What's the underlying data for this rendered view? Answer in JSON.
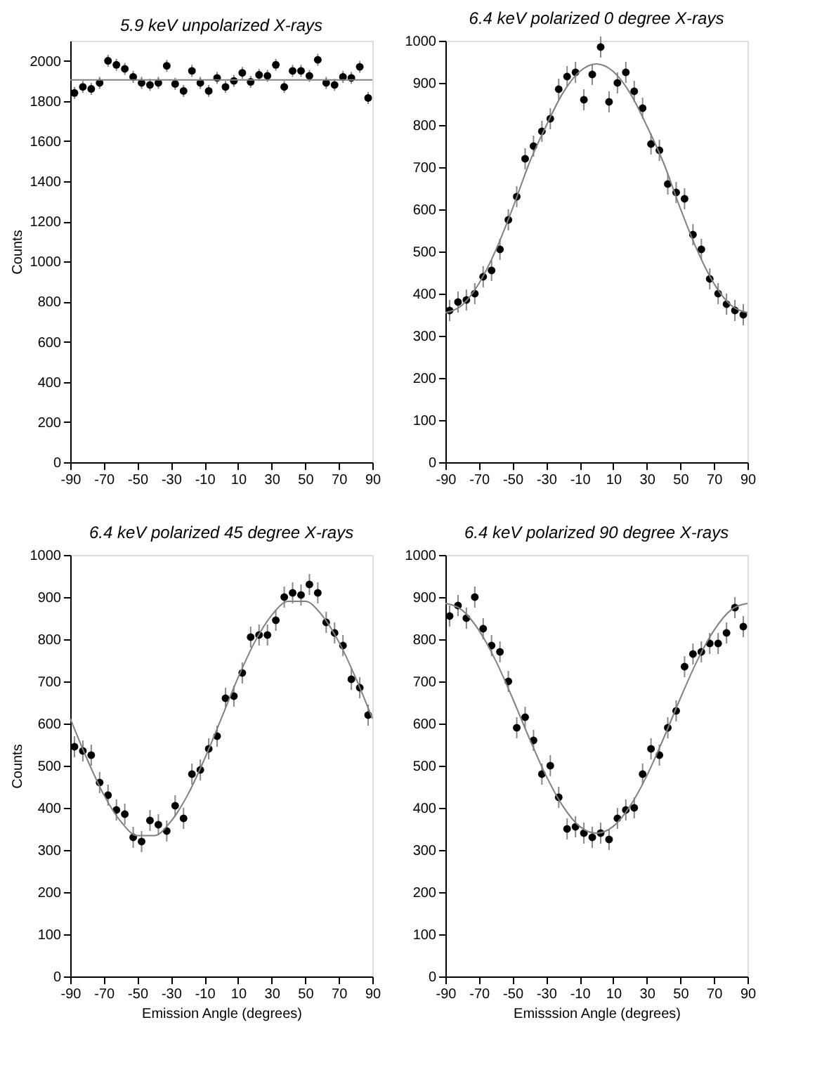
{
  "chart_data": [
    {
      "type": "scatter",
      "title": "5.9 keV unpolarized X-rays",
      "ylabel": "Counts",
      "xlim": [
        -90,
        90
      ],
      "xticks": [
        -90,
        -70,
        -50,
        -30,
        -10,
        10,
        30,
        50,
        70,
        90
      ],
      "ylim": [
        0,
        2100
      ],
      "yticks": [
        0,
        200,
        400,
        600,
        800,
        1000,
        1200,
        1400,
        1600,
        1800,
        2000
      ],
      "x": [
        -87.5,
        -82.5,
        -77.5,
        -72.5,
        -67.5,
        -62.5,
        -57.5,
        -52.5,
        -47.5,
        -42.5,
        -37.5,
        -32.5,
        -27.5,
        -22.5,
        -17.5,
        -12.5,
        -7.5,
        -2.5,
        2.5,
        7.5,
        12.5,
        17.5,
        22.5,
        27.5,
        32.5,
        37.5,
        42.5,
        47.5,
        52.5,
        57.5,
        62.5,
        67.5,
        72.5,
        77.5,
        82.5,
        87.5
      ],
      "series": [
        {
          "type": "scatter",
          "marker": "circle",
          "color": "#000000",
          "values": [
            1840,
            1870,
            1860,
            1890,
            2000,
            1980,
            1960,
            1920,
            1890,
            1880,
            1890,
            1975,
            1885,
            1850,
            1950,
            1890,
            1850,
            1915,
            1870,
            1900,
            1940,
            1895,
            1930,
            1925,
            1980,
            1870,
            1950,
            1950,
            1925,
            2005,
            1890,
            1880,
            1920,
            1915,
            1970,
            1815
          ],
          "errors": [
            30,
            30,
            30,
            30,
            30,
            30,
            30,
            30,
            30,
            30,
            30,
            30,
            30,
            30,
            30,
            30,
            30,
            30,
            30,
            30,
            30,
            30,
            30,
            30,
            30,
            30,
            30,
            30,
            30,
            30,
            30,
            30,
            30,
            30,
            30,
            30
          ]
        },
        {
          "type": "line",
          "color": "#808080",
          "x": [
            -90,
            90
          ],
          "values": [
            1905,
            1905
          ]
        }
      ]
    },
    {
      "type": "scatter",
      "title": "6.4 keV polarized 0 degree X-rays",
      "xlim": [
        -90,
        90
      ],
      "xticks": [
        -90,
        -70,
        -50,
        -30,
        -10,
        10,
        30,
        50,
        70,
        90
      ],
      "ylim": [
        0,
        1000
      ],
      "yticks": [
        0,
        100,
        200,
        300,
        400,
        500,
        600,
        700,
        800,
        900,
        1000
      ],
      "x": [
        -87.5,
        -82.5,
        -77.5,
        -72.5,
        -67.5,
        -62.5,
        -57.5,
        -52.5,
        -47.5,
        -42.5,
        -37.5,
        -32.5,
        -27.5,
        -22.5,
        -17.5,
        -12.5,
        -7.5,
        -2.5,
        2.5,
        7.5,
        12.5,
        17.5,
        22.5,
        27.5,
        32.5,
        37.5,
        42.5,
        47.5,
        52.5,
        57.5,
        62.5,
        67.5,
        72.5,
        77.5,
        82.5,
        87.5
      ],
      "series": [
        {
          "type": "scatter",
          "marker": "circle",
          "color": "#000000",
          "values": [
            360,
            380,
            385,
            400,
            440,
            455,
            505,
            575,
            630,
            720,
            750,
            785,
            815,
            885,
            915,
            925,
            860,
            920,
            985,
            855,
            900,
            925,
            880,
            840,
            755,
            740,
            660,
            640,
            625,
            540,
            505,
            435,
            400,
            375,
            360,
            350
          ],
          "errors": [
            25,
            25,
            25,
            25,
            25,
            25,
            25,
            25,
            25,
            25,
            25,
            25,
            25,
            25,
            25,
            25,
            25,
            25,
            25,
            25,
            25,
            25,
            25,
            25,
            25,
            25,
            25,
            25,
            25,
            25,
            25,
            25,
            25,
            25,
            25,
            25
          ]
        },
        {
          "type": "line",
          "color": "#808080",
          "x": [
            -90,
            -80,
            -70,
            -60,
            -50,
            -40,
            -30,
            -20,
            -10,
            0,
            10,
            20,
            30,
            40,
            50,
            60,
            70,
            80,
            90
          ],
          "values": [
            355,
            373,
            424,
            503,
            602,
            710,
            798,
            876,
            927,
            945,
            927,
            876,
            798,
            710,
            602,
            503,
            424,
            373,
            355
          ]
        }
      ]
    },
    {
      "type": "scatter",
      "title": "6.4 keV polarized 45 degree X-rays",
      "xlabel": "Emission Angle (degrees)",
      "ylabel": "Counts",
      "xlim": [
        -90,
        90
      ],
      "xticks": [
        -90,
        -70,
        -50,
        -30,
        -10,
        10,
        30,
        50,
        70,
        90
      ],
      "ylim": [
        0,
        1000
      ],
      "yticks": [
        0,
        100,
        200,
        300,
        400,
        500,
        600,
        700,
        800,
        900,
        1000
      ],
      "x": [
        -87.5,
        -82.5,
        -77.5,
        -72.5,
        -67.5,
        -62.5,
        -57.5,
        -52.5,
        -47.5,
        -42.5,
        -37.5,
        -32.5,
        -27.5,
        -22.5,
        -17.5,
        -12.5,
        -7.5,
        -2.5,
        2.5,
        7.5,
        12.5,
        17.5,
        22.5,
        27.5,
        32.5,
        37.5,
        42.5,
        47.5,
        52.5,
        57.5,
        62.5,
        67.5,
        72.5,
        77.5,
        82.5,
        87.5
      ],
      "series": [
        {
          "type": "scatter",
          "marker": "circle",
          "color": "#000000",
          "values": [
            545,
            535,
            525,
            460,
            430,
            395,
            385,
            330,
            320,
            370,
            360,
            345,
            405,
            375,
            480,
            490,
            540,
            570,
            660,
            665,
            720,
            805,
            810,
            810,
            845,
            900,
            910,
            905,
            930,
            910,
            840,
            815,
            785,
            705,
            685,
            620
          ],
          "errors": [
            25,
            25,
            25,
            25,
            25,
            25,
            25,
            25,
            25,
            25,
            25,
            25,
            25,
            25,
            25,
            25,
            25,
            25,
            25,
            25,
            25,
            25,
            25,
            25,
            25,
            25,
            25,
            25,
            25,
            25,
            25,
            25,
            25,
            25,
            25,
            25
          ]
        },
        {
          "type": "line",
          "color": "#808080",
          "x": [
            -90,
            -80,
            -70,
            -60,
            -50,
            -40,
            -30,
            -20,
            -10,
            0,
            10,
            20,
            30,
            40,
            50,
            60,
            70,
            80,
            90
          ],
          "values": [
            612,
            516,
            431,
            368,
            334,
            334,
            368,
            431,
            516,
            612,
            709,
            794,
            857,
            890,
            890,
            857,
            794,
            709,
            612
          ]
        }
      ]
    },
    {
      "type": "scatter",
      "title": "6.4 keV polarized 90 degree X-rays",
      "xlabel": "Emisssion Angle (degrees)",
      "xlim": [
        -90,
        90
      ],
      "xticks": [
        -90,
        -70,
        -50,
        -30,
        -10,
        10,
        30,
        50,
        70,
        90
      ],
      "ylim": [
        0,
        1000
      ],
      "yticks": [
        0,
        100,
        200,
        300,
        400,
        500,
        600,
        700,
        800,
        900,
        1000
      ],
      "x": [
        -87.5,
        -82.5,
        -77.5,
        -72.5,
        -67.5,
        -62.5,
        -57.5,
        -52.5,
        -47.5,
        -42.5,
        -37.5,
        -32.5,
        -27.5,
        -22.5,
        -17.5,
        -12.5,
        -7.5,
        -2.5,
        2.5,
        7.5,
        12.5,
        17.5,
        22.5,
        27.5,
        32.5,
        37.5,
        42.5,
        47.5,
        52.5,
        57.5,
        62.5,
        67.5,
        72.5,
        77.5,
        82.5,
        87.5
      ],
      "series": [
        {
          "type": "scatter",
          "marker": "circle",
          "color": "#000000",
          "values": [
            855,
            880,
            850,
            900,
            825,
            785,
            770,
            700,
            590,
            615,
            560,
            480,
            500,
            425,
            350,
            355,
            340,
            330,
            340,
            325,
            375,
            395,
            400,
            480,
            540,
            525,
            590,
            630,
            735,
            765,
            770,
            790,
            790,
            815,
            875,
            830
          ],
          "errors": [
            25,
            25,
            25,
            25,
            25,
            25,
            25,
            25,
            25,
            25,
            25,
            25,
            25,
            25,
            25,
            25,
            25,
            25,
            25,
            25,
            25,
            25,
            25,
            25,
            25,
            25,
            25,
            25,
            25,
            25,
            25,
            25,
            25,
            25,
            25,
            25
          ]
        },
        {
          "type": "line",
          "color": "#808080",
          "x": [
            -90,
            -80,
            -70,
            -60,
            -50,
            -40,
            -30,
            -20,
            -10,
            0,
            10,
            20,
            30,
            40,
            50,
            60,
            70,
            80,
            90
          ],
          "values": [
            885,
            869,
            821,
            749,
            660,
            565,
            476,
            404,
            356,
            340,
            356,
            404,
            476,
            565,
            660,
            749,
            821,
            869,
            885
          ]
        }
      ]
    }
  ]
}
